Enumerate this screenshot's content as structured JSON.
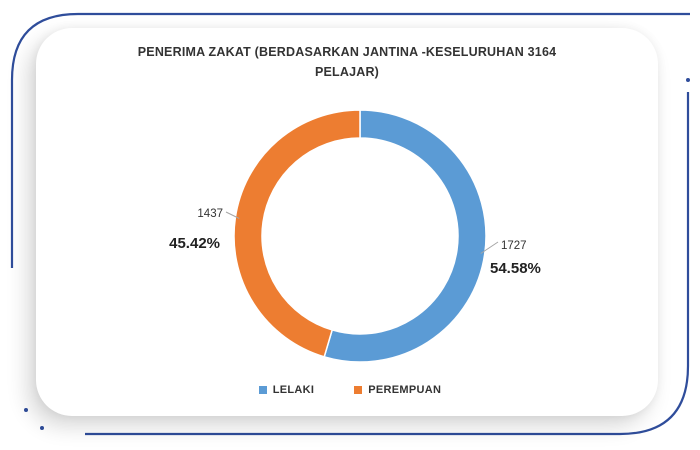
{
  "chart_data": {
    "type": "pie",
    "variant": "doughnut",
    "title_lines": [
      "PENERIMA ZAKAT (BERDASARKAN JANTINA -KESELURUHAN 3164",
      "PELAJAR)"
    ],
    "categories": [
      "LELAKI",
      "PEREMPUAN"
    ],
    "values": [
      1727,
      1437
    ],
    "percent_labels": [
      "54.58%",
      "45.42%"
    ],
    "colors": [
      "#5b9bd5",
      "#ed7d31"
    ],
    "legend_position": "bottom"
  },
  "frame_colors": {
    "border": "#2f4d9b"
  }
}
